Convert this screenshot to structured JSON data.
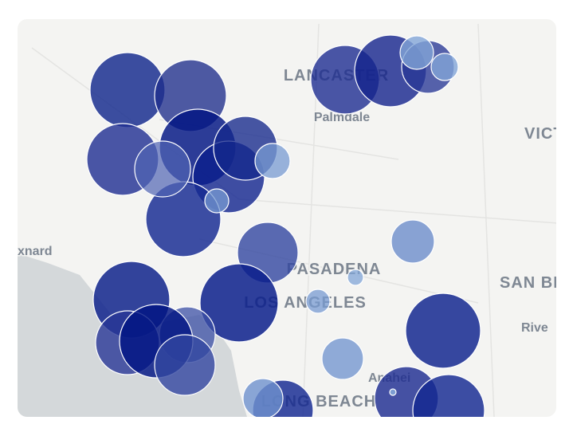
{
  "map": {
    "labels": [
      "LANCASTER",
      "Palmdale",
      "VICT",
      "xnard",
      "PASADENA",
      "SAN BI",
      "LOS ANGELES",
      "Rive",
      "Anahei",
      "LONG BEACH"
    ]
  }
}
